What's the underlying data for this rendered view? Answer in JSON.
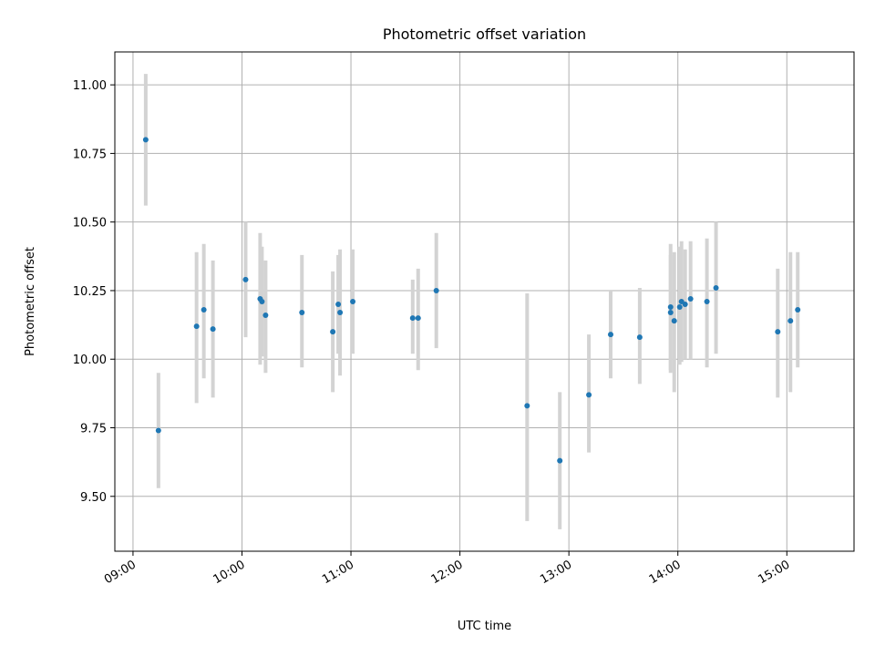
{
  "chart_data": {
    "type": "scatter",
    "title": "Photometric offset variation",
    "xlabel": "UTC time",
    "ylabel": "Photometric offset",
    "x_unit": "hours UTC",
    "xlim": [
      "08:50",
      "15:37"
    ],
    "ylim": [
      9.3,
      11.12
    ],
    "xticks": [
      "09:00",
      "10:00",
      "11:00",
      "12:00",
      "13:00",
      "14:00",
      "15:00"
    ],
    "yticks": [
      "9.50",
      "9.75",
      "10.00",
      "10.25",
      "10.50",
      "10.75",
      "11.00"
    ],
    "grid": true,
    "marker_color": "#1f77b4",
    "errorbar_color": "#d3d3d3",
    "points": [
      {
        "x": "09:07",
        "y": 10.8,
        "lo": 10.56,
        "hi": 11.04
      },
      {
        "x": "09:14",
        "y": 9.74,
        "lo": 9.53,
        "hi": 9.95
      },
      {
        "x": "09:35",
        "y": 10.12,
        "lo": 9.84,
        "hi": 10.39
      },
      {
        "x": "09:39",
        "y": 10.18,
        "lo": 9.93,
        "hi": 10.42
      },
      {
        "x": "09:44",
        "y": 10.11,
        "lo": 9.86,
        "hi": 10.36
      },
      {
        "x": "10:02",
        "y": 10.29,
        "lo": 10.08,
        "hi": 10.5
      },
      {
        "x": "10:10",
        "y": 10.22,
        "lo": 9.98,
        "hi": 10.46
      },
      {
        "x": "10:11",
        "y": 10.21,
        "lo": 10.01,
        "hi": 10.41
      },
      {
        "x": "10:13",
        "y": 10.16,
        "lo": 9.95,
        "hi": 10.36
      },
      {
        "x": "10:33",
        "y": 10.17,
        "lo": 9.97,
        "hi": 10.38
      },
      {
        "x": "10:50",
        "y": 10.1,
        "lo": 9.88,
        "hi": 10.32
      },
      {
        "x": "10:53",
        "y": 10.2,
        "lo": 10.02,
        "hi": 10.38
      },
      {
        "x": "10:54",
        "y": 10.17,
        "lo": 9.94,
        "hi": 10.4
      },
      {
        "x": "11:01",
        "y": 10.21,
        "lo": 10.02,
        "hi": 10.4
      },
      {
        "x": "11:34",
        "y": 10.15,
        "lo": 10.02,
        "hi": 10.29
      },
      {
        "x": "11:37",
        "y": 10.15,
        "lo": 9.96,
        "hi": 10.33
      },
      {
        "x": "11:47",
        "y": 10.25,
        "lo": 10.04,
        "hi": 10.46
      },
      {
        "x": "12:37",
        "y": 9.83,
        "lo": 9.41,
        "hi": 10.24
      },
      {
        "x": "12:55",
        "y": 9.63,
        "lo": 9.38,
        "hi": 9.88
      },
      {
        "x": "13:11",
        "y": 9.87,
        "lo": 9.66,
        "hi": 10.09
      },
      {
        "x": "13:23",
        "y": 10.09,
        "lo": 9.93,
        "hi": 10.25
      },
      {
        "x": "13:39",
        "y": 10.08,
        "lo": 9.91,
        "hi": 10.26
      },
      {
        "x": "13:56",
        "y": 10.19,
        "lo": 9.95,
        "hi": 10.42
      },
      {
        "x": "13:56",
        "y": 10.17,
        "lo": 9.96,
        "hi": 10.38
      },
      {
        "x": "13:58",
        "y": 10.14,
        "lo": 9.88,
        "hi": 10.39
      },
      {
        "x": "14:01",
        "y": 10.19,
        "lo": 9.98,
        "hi": 10.41
      },
      {
        "x": "14:02",
        "y": 10.21,
        "lo": 9.99,
        "hi": 10.43
      },
      {
        "x": "14:04",
        "y": 10.2,
        "lo": 10.0,
        "hi": 10.4
      },
      {
        "x": "14:07",
        "y": 10.22,
        "lo": 10.0,
        "hi": 10.43
      },
      {
        "x": "14:16",
        "y": 10.21,
        "lo": 9.97,
        "hi": 10.44
      },
      {
        "x": "14:21",
        "y": 10.26,
        "lo": 10.02,
        "hi": 10.5
      },
      {
        "x": "14:55",
        "y": 10.1,
        "lo": 9.86,
        "hi": 10.33
      },
      {
        "x": "15:02",
        "y": 10.14,
        "lo": 9.88,
        "hi": 10.39
      },
      {
        "x": "15:06",
        "y": 10.18,
        "lo": 9.97,
        "hi": 10.39
      }
    ]
  }
}
